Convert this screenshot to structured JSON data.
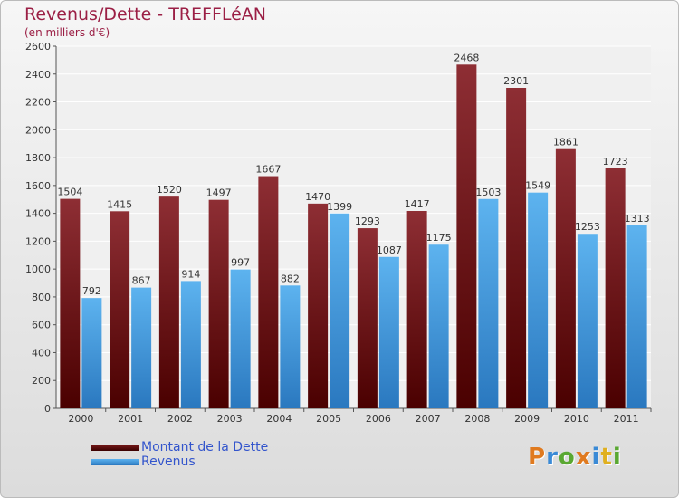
{
  "title": "Revenus/Dette - TREFFLéAN",
  "subtitle": "(en milliers d'€)",
  "colors": {
    "dette": "#8b2020",
    "revenus": "#4a9ee0",
    "title": "#9b1f45"
  },
  "legend": {
    "dette": "Montant de la Dette",
    "revenus": "Revenus"
  },
  "logo": "Proxiti",
  "chart_data": {
    "type": "bar",
    "categories": [
      "2000",
      "2001",
      "2002",
      "2003",
      "2004",
      "2005",
      "2006",
      "2007",
      "2008",
      "2009",
      "2010",
      "2011"
    ],
    "series": [
      {
        "name": "Montant de la Dette",
        "values": [
          1504,
          1415,
          1520,
          1497,
          1667,
          1470,
          1293,
          1417,
          2468,
          2301,
          1861,
          1723
        ]
      },
      {
        "name": "Revenus",
        "values": [
          792,
          867,
          914,
          997,
          882,
          1399,
          1087,
          1175,
          1503,
          1549,
          1253,
          1313
        ]
      }
    ],
    "ylim": [
      0,
      2600
    ],
    "yticks": [
      0,
      200,
      400,
      600,
      800,
      1000,
      1200,
      1400,
      1600,
      1800,
      2000,
      2200,
      2400,
      2600
    ],
    "grid": true,
    "legend_position": "bottom-left"
  }
}
